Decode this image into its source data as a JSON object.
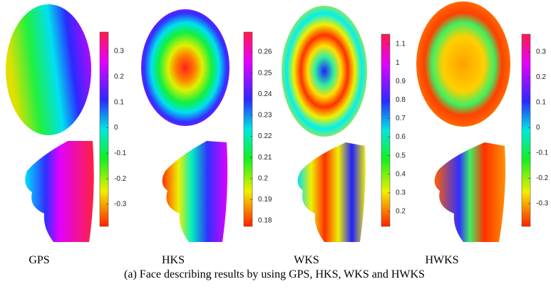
{
  "caption": "(a) Face describing results by using GPS, HKS, WKS and HWKS",
  "panels": [
    {
      "label": "GPS",
      "colorbar_ticks": [
        0.3,
        0.2,
        0.1,
        0,
        -0.1,
        -0.2,
        -0.3
      ]
    },
    {
      "label": "HKS",
      "colorbar_ticks": [
        0.26,
        0.25,
        0.24,
        0.23,
        0.22,
        0.21,
        0.2,
        0.19,
        0.18
      ]
    },
    {
      "label": "WKS",
      "colorbar_ticks": [
        1.1,
        1,
        0.9,
        0.8,
        0.7,
        0.6,
        0.5,
        0.4,
        0.3,
        0.2
      ]
    },
    {
      "label": "HWKS",
      "colorbar_ticks": [
        0.3,
        0.2,
        0.1,
        0,
        -0.1,
        -0.2,
        -0.3
      ]
    }
  ]
}
